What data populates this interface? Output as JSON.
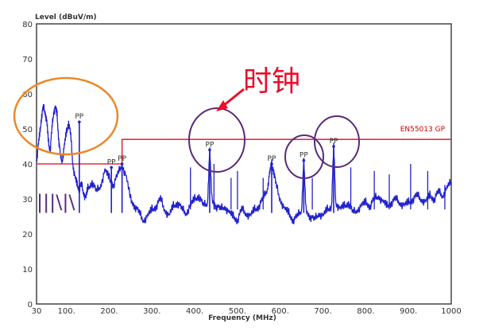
{
  "chart_data": {
    "type": "line",
    "ylabel": "Level (dBuV/m)",
    "xlabel": "Frequency (MHz)",
    "xlim": [
      30,
      1000
    ],
    "ylim": [
      0,
      80
    ],
    "x_ticks": [
      30,
      100,
      200,
      300,
      400,
      500,
      600,
      700,
      800,
      900,
      1000
    ],
    "x_tick_labels": [
      "30",
      "100.",
      "200.",
      "300.",
      "400.",
      "500.",
      "600.",
      "700.",
      "800.",
      "900.",
      "1000"
    ],
    "y_ticks": [
      0,
      10,
      20,
      30,
      40,
      50,
      60,
      70,
      80
    ],
    "y_tick_labels": [
      "0",
      "10",
      "20",
      "30",
      "40",
      "50",
      "60",
      "70",
      "80"
    ],
    "grid": true,
    "series": [
      {
        "color": "#2222cc",
        "x": [
          30,
          34,
          38,
          42,
          46,
          50,
          54,
          58,
          62,
          66,
          70,
          74,
          78,
          82,
          86,
          90,
          95,
          100,
          105,
          110,
          115,
          120,
          125,
          130,
          135,
          140,
          145,
          150,
          160,
          170,
          180,
          190,
          200,
          210,
          220,
          230,
          240,
          250,
          260,
          270,
          280,
          290,
          300,
          310,
          320,
          330,
          340,
          350,
          360,
          370,
          380,
          390,
          400,
          410,
          420,
          430,
          435,
          440,
          450,
          460,
          470,
          480,
          490,
          500,
          510,
          520,
          530,
          540,
          550,
          560,
          570,
          575,
          580,
          585,
          590,
          600,
          610,
          620,
          630,
          640,
          650,
          655,
          660,
          670,
          680,
          690,
          700,
          710,
          720,
          725,
          730,
          740,
          750,
          760,
          770,
          780,
          790,
          800,
          810,
          820,
          830,
          840,
          850,
          860,
          870,
          880,
          890,
          900,
          910,
          920,
          930,
          940,
          950,
          960,
          970,
          980,
          990,
          1000
        ],
        "y": [
          41,
          45,
          49,
          54,
          56,
          55,
          52,
          46,
          44,
          50,
          55,
          56,
          54,
          47,
          42,
          41,
          45,
          49,
          52,
          48,
          40,
          36,
          34,
          33,
          34,
          32,
          30,
          33,
          35,
          32,
          34,
          38,
          36,
          34,
          37,
          40,
          36,
          30,
          28,
          26,
          24,
          25,
          27,
          28,
          30,
          27,
          25,
          28,
          29,
          27,
          26,
          28,
          30,
          31,
          28,
          29,
          44,
          30,
          28,
          27,
          28,
          26,
          25,
          24,
          27,
          26,
          25,
          27,
          28,
          30,
          33,
          37,
          40,
          38,
          34,
          30,
          27,
          26,
          24,
          25,
          27,
          41,
          27,
          25,
          24,
          26,
          25,
          27,
          28,
          45,
          29,
          27,
          28,
          29,
          26,
          27,
          28,
          29,
          28,
          30,
          31,
          29,
          28,
          29,
          30,
          29,
          28,
          29,
          30,
          31,
          30,
          29,
          31,
          30,
          32,
          31,
          33,
          35
        ]
      }
    ],
    "limit_line": {
      "label": "EN55013 GP",
      "color": "#e0303a",
      "x": [
        30,
        230,
        230,
        1000
      ],
      "y": [
        40,
        40,
        47,
        47
      ]
    },
    "spikes": [
      {
        "x": 205,
        "y": 38
      },
      {
        "x": 230,
        "y": 40
      },
      {
        "x": 390,
        "y": 39
      },
      {
        "x": 445,
        "y": 40
      },
      {
        "x": 485,
        "y": 36
      },
      {
        "x": 500,
        "y": 38
      },
      {
        "x": 560,
        "y": 36
      },
      {
        "x": 675,
        "y": 36
      },
      {
        "x": 765,
        "y": 39
      },
      {
        "x": 820,
        "y": 38
      },
      {
        "x": 855,
        "y": 37
      },
      {
        "x": 905,
        "y": 40
      },
      {
        "x": 945,
        "y": 38
      },
      {
        "x": 985,
        "y": 34
      }
    ],
    "peak_markers": [
      {
        "label": "PP",
        "x": 130,
        "y": 52
      },
      {
        "label": "PP",
        "x": 205,
        "y": 39
      },
      {
        "label": "PP",
        "x": 230,
        "y": 40
      },
      {
        "label": "PP",
        "x": 435,
        "y": 44
      },
      {
        "label": "PP",
        "x": 580,
        "y": 40
      },
      {
        "label": "PP",
        "x": 655,
        "y": 41
      },
      {
        "label": "PP",
        "x": 725,
        "y": 45
      }
    ]
  },
  "annotations": {
    "handwritten_text": "时钟",
    "handwritten_scribble": "|||\\|\\",
    "colors": {
      "circle_orange": "#e98a2a",
      "circle_purple": "#5a2a7a",
      "arrow_red": "#e8102a"
    }
  }
}
